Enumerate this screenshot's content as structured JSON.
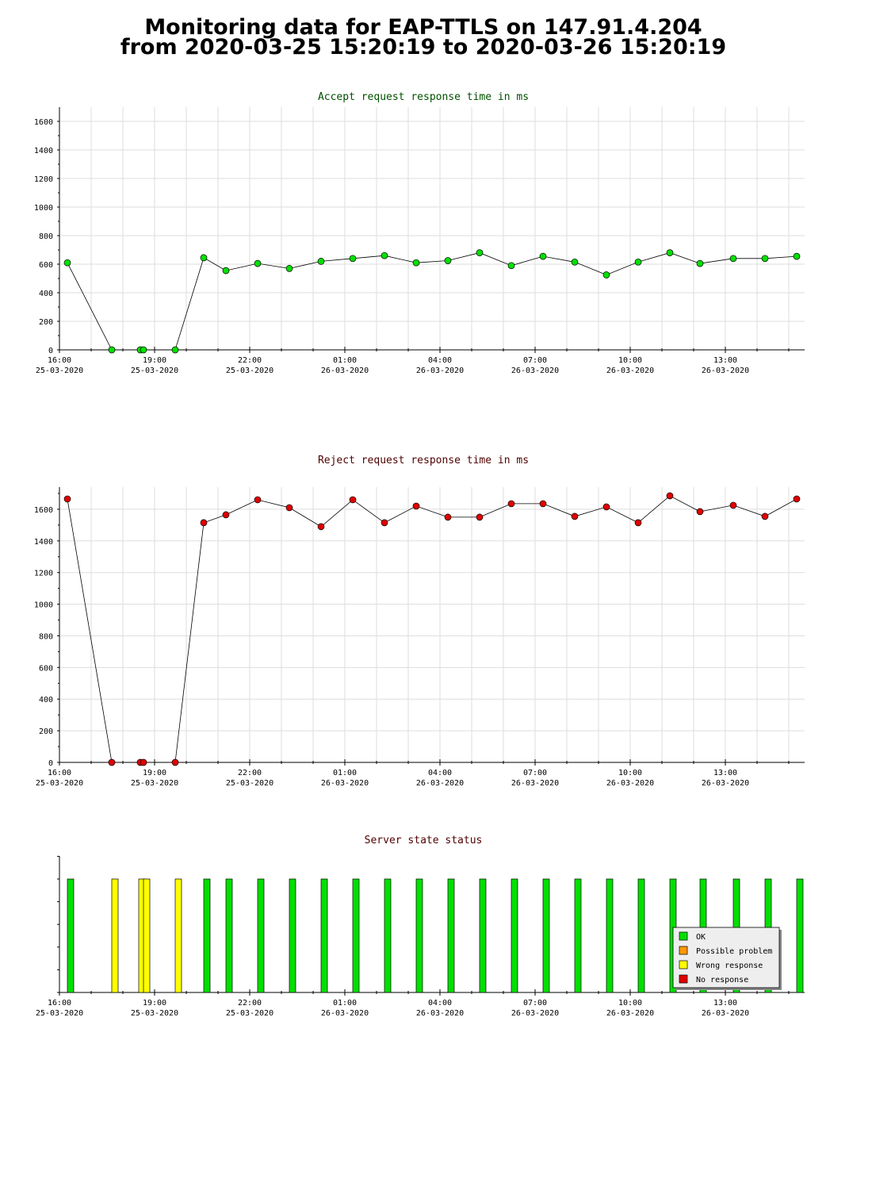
{
  "page": {
    "title_line1": "Monitoring data for EAP-TTLS on 147.91.4.204",
    "title_line2": "from 2020-03-25 15:20:19 to 2020-03-26 15:20:19"
  },
  "colors": {
    "grid": "#dddddd",
    "axis": "#000000",
    "accept_title": "#005000",
    "reject_title": "#500000",
    "status_title": "#500000",
    "accept_marker": "#00e000",
    "reject_marker": "#e00000",
    "ok": "#00e000",
    "possible_problem": "#ff9900",
    "wrong_response": "#ffff00",
    "no_response": "#e00000"
  },
  "x_ticks": [
    {
      "time": "16:00",
      "date": "25-03-2020",
      "hour": 0
    },
    {
      "time": "19:00",
      "date": "25-03-2020",
      "hour": 3
    },
    {
      "time": "22:00",
      "date": "25-03-2020",
      "hour": 6
    },
    {
      "time": "01:00",
      "date": "26-03-2020",
      "hour": 9
    },
    {
      "time": "04:00",
      "date": "26-03-2020",
      "hour": 12
    },
    {
      "time": "07:00",
      "date": "26-03-2020",
      "hour": 15
    },
    {
      "time": "10:00",
      "date": "26-03-2020",
      "hour": 18
    },
    {
      "time": "13:00",
      "date": "26-03-2020",
      "hour": 21
    }
  ],
  "chart_data": [
    {
      "type": "line",
      "title": "Accept request response time in ms",
      "x_unit": "hours since 16:00 25-03-2020",
      "xlim": [
        0,
        23.5
      ],
      "ylim": [
        0,
        1700
      ],
      "y_ticks": [
        0,
        200,
        400,
        600,
        800,
        1000,
        1200,
        1400,
        1600
      ],
      "grid": true,
      "series": [
        {
          "x": [
            0.25,
            1.65,
            2.55,
            2.65,
            3.65,
            4.55,
            5.25,
            6.25,
            7.25,
            8.25,
            9.25,
            10.25,
            11.25,
            12.25,
            13.25,
            14.25,
            15.25,
            16.25,
            17.25,
            18.25,
            19.25,
            20.2,
            21.25,
            22.25,
            23.25
          ],
          "y": [
            610,
            0,
            0,
            0,
            0,
            645,
            555,
            605,
            570,
            620,
            640,
            660,
            610,
            625,
            680,
            590,
            655,
            615,
            525,
            615,
            680,
            605,
            640,
            640,
            655
          ]
        }
      ]
    },
    {
      "type": "line",
      "title": "Reject request response time in ms",
      "x_unit": "hours since 16:00 25-03-2020",
      "xlim": [
        0,
        23.5
      ],
      "ylim": [
        0,
        1740
      ],
      "y_ticks": [
        0,
        200,
        400,
        600,
        800,
        1000,
        1200,
        1400,
        1600
      ],
      "grid": true,
      "series": [
        {
          "x": [
            0.25,
            1.65,
            2.55,
            2.65,
            3.65,
            4.55,
            5.25,
            6.25,
            7.25,
            8.25,
            9.25,
            10.25,
            11.25,
            12.25,
            13.25,
            14.25,
            15.25,
            16.25,
            17.25,
            18.25,
            19.25,
            20.2,
            21.25,
            22.25,
            23.25
          ],
          "y": [
            1665,
            0,
            0,
            0,
            0,
            1515,
            1565,
            1660,
            1610,
            1490,
            1660,
            1515,
            1620,
            1550,
            1550,
            1635,
            1635,
            1555,
            1615,
            1515,
            1685,
            1585,
            1625,
            1555,
            1665
          ]
        }
      ]
    },
    {
      "type": "bar",
      "title": "Server state status",
      "x_unit": "hours since 16:00 25-03-2020",
      "xlim": [
        0,
        23.5
      ],
      "grid": false,
      "legend_position": "bottom-right",
      "legend": [
        {
          "label": "OK",
          "color_key": "ok"
        },
        {
          "label": "Possible problem",
          "color_key": "possible_problem"
        },
        {
          "label": "Wrong response",
          "color_key": "wrong_response"
        },
        {
          "label": "No response",
          "color_key": "no_response"
        }
      ],
      "bars": [
        {
          "x": 0.35,
          "state": "ok"
        },
        {
          "x": 1.75,
          "state": "wrong_response"
        },
        {
          "x": 2.6,
          "state": "wrong_response"
        },
        {
          "x": 2.75,
          "state": "wrong_response"
        },
        {
          "x": 3.75,
          "state": "wrong_response"
        },
        {
          "x": 4.65,
          "state": "ok"
        },
        {
          "x": 5.35,
          "state": "ok"
        },
        {
          "x": 6.35,
          "state": "ok"
        },
        {
          "x": 7.35,
          "state": "ok"
        },
        {
          "x": 8.35,
          "state": "ok"
        },
        {
          "x": 9.35,
          "state": "ok"
        },
        {
          "x": 10.35,
          "state": "ok"
        },
        {
          "x": 11.35,
          "state": "ok"
        },
        {
          "x": 12.35,
          "state": "ok"
        },
        {
          "x": 13.35,
          "state": "ok"
        },
        {
          "x": 14.35,
          "state": "ok"
        },
        {
          "x": 15.35,
          "state": "ok"
        },
        {
          "x": 16.35,
          "state": "ok"
        },
        {
          "x": 17.35,
          "state": "ok"
        },
        {
          "x": 18.35,
          "state": "ok"
        },
        {
          "x": 19.35,
          "state": "ok"
        },
        {
          "x": 20.3,
          "state": "ok"
        },
        {
          "x": 21.35,
          "state": "ok"
        },
        {
          "x": 22.35,
          "state": "ok"
        },
        {
          "x": 23.35,
          "state": "ok"
        }
      ]
    }
  ]
}
